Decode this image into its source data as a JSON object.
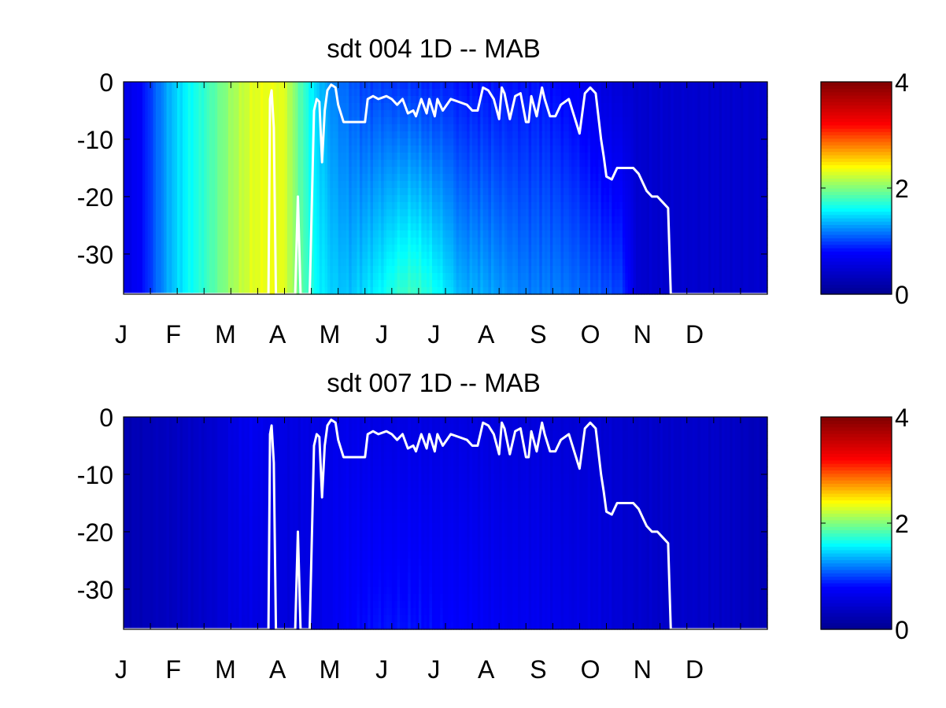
{
  "figure": {
    "colormap": "jet",
    "colormap_stops": [
      "#00008f",
      "#0000ff",
      "#00ffff",
      "#ffff00",
      "#ff0000",
      "#800000"
    ],
    "line_color": "#ffffff"
  },
  "chart_data": [
    {
      "type": "heatmap",
      "title": "sdt  004 1D   -- MAB",
      "xlabel": "",
      "ylabel": "",
      "x_tick_labels": [
        "J",
        "F",
        "M",
        "A",
        "M",
        "J",
        "J",
        "A",
        "S",
        "O",
        "N",
        "D"
      ],
      "x_range_months": [
        0,
        12
      ],
      "y_ticks": [
        0,
        -10,
        -20,
        -30
      ],
      "y_tick_labels": [
        "0",
        "-10",
        "-20",
        "-30"
      ],
      "ylim": [
        -37,
        0
      ],
      "colorbar": {
        "range": [
          0,
          4
        ],
        "tick_values": [
          0,
          2,
          4
        ],
        "tick_labels": [
          "0",
          "2",
          "4"
        ]
      },
      "field_model": {
        "month_grid": [
          0,
          0.3,
          0.6,
          0.9,
          1.2,
          1.5,
          1.8,
          2.1,
          2.4,
          2.7,
          3.0,
          3.3,
          3.6,
          3.9,
          4.2,
          4.5,
          4.8,
          5.1,
          5.4,
          5.7,
          6.0,
          6.3,
          6.6,
          6.9,
          7.2,
          7.5,
          7.8,
          8.1,
          8.4,
          8.7,
          9.0,
          9.3,
          9.6,
          9.9,
          10.2,
          10.5,
          10.8,
          11.1,
          11.4,
          11.7,
          12.0
        ],
        "surface_values": [
          0.6,
          0.75,
          1.1,
          1.4,
          1.6,
          1.75,
          1.95,
          2.15,
          2.3,
          2.35,
          2.3,
          1.85,
          1.45,
          1.2,
          1.1,
          1.0,
          1.0,
          0.95,
          0.95,
          0.9,
          0.9,
          0.85,
          0.85,
          0.85,
          0.85,
          0.85,
          0.85,
          0.8,
          0.75,
          0.65,
          0.55,
          0.5,
          0.45,
          0.45,
          0.45,
          0.45,
          0.45,
          0.45,
          0.45,
          0.45,
          0.45
        ],
        "bottom_values": [
          0.6,
          0.75,
          1.1,
          1.4,
          1.6,
          1.75,
          1.95,
          2.15,
          2.3,
          2.35,
          2.3,
          1.9,
          1.6,
          1.45,
          1.4,
          1.5,
          1.6,
          1.75,
          1.8,
          1.7,
          1.55,
          1.35,
          1.35,
          1.3,
          1.25,
          1.2,
          1.2,
          1.2,
          1.15,
          1.1,
          1.05,
          1.0,
          0.45,
          0.45,
          0.45,
          0.45,
          0.45,
          0.45,
          0.45,
          0.45,
          0.45
        ]
      },
      "series": [
        {
          "x": [
            0,
            2.7,
            2.73,
            2.76,
            2.8,
            2.84,
            2.9,
            3.0,
            3.1,
            3.2,
            3.25,
            3.3,
            3.37,
            3.4,
            3.47,
            3.55,
            3.6,
            3.65,
            3.7,
            3.75,
            3.8,
            3.87,
            3.95,
            4.0,
            4.1,
            4.5,
            4.55,
            4.65,
            4.75,
            4.9,
            5.0,
            5.1,
            5.2,
            5.3,
            5.4,
            5.45,
            5.55,
            5.65,
            5.7,
            5.8,
            5.85,
            5.95,
            6.1,
            6.25,
            6.4,
            6.5,
            6.6,
            6.7,
            6.8,
            6.9,
            7.0,
            7.05,
            7.1,
            7.2,
            7.3,
            7.4,
            7.5,
            7.55,
            7.6,
            7.7,
            7.8,
            7.85,
            7.95,
            8.05,
            8.1,
            8.15,
            8.3,
            8.4,
            8.5,
            8.6,
            8.7,
            8.8,
            8.9,
            8.95,
            9.0,
            9.1,
            9.2,
            9.3,
            9.5,
            9.6,
            9.7,
            9.75,
            9.85,
            9.95,
            10.05,
            10.15,
            10.2,
            10.25,
            10.3,
            12
          ],
          "y": [
            -37,
            -37,
            -3,
            -1.5,
            -8,
            -37,
            -37,
            -37,
            -37,
            -37,
            -20,
            -37,
            -37,
            -37,
            -37,
            -5,
            -3,
            -3.5,
            -14,
            -5,
            -1.5,
            -0.5,
            -1,
            -4,
            -7,
            -7,
            -3,
            -2.5,
            -3,
            -2.5,
            -3,
            -4,
            -3,
            -5.5,
            -5,
            -6,
            -3,
            -5.5,
            -3,
            -6,
            -3,
            -5,
            -3,
            -3.5,
            -4,
            -5,
            -5,
            -1,
            -1.5,
            -3,
            -6.5,
            -1,
            -2,
            -6.5,
            -2.5,
            -2,
            -7,
            -7,
            -2.5,
            -6,
            -1,
            -3,
            -6,
            -6,
            -5,
            -4,
            -3,
            -6,
            -9,
            -2,
            -1,
            -2,
            -10,
            -13,
            -16.5,
            -17,
            -15,
            -15,
            -15,
            -16,
            -18,
            -19,
            -20,
            -20,
            -21,
            -22,
            -37,
            -37,
            -37,
            -37
          ]
        }
      ]
    },
    {
      "type": "heatmap",
      "title": "sdt  007 1D   -- MAB",
      "xlabel": "",
      "ylabel": "",
      "x_tick_labels": [
        "J",
        "F",
        "M",
        "A",
        "M",
        "J",
        "J",
        "A",
        "S",
        "O",
        "N",
        "D"
      ],
      "x_range_months": [
        0,
        12
      ],
      "y_ticks": [
        0,
        -10,
        -20,
        -30
      ],
      "y_tick_labels": [
        "0",
        "-10",
        "-20",
        "-30"
      ],
      "ylim": [
        -37,
        0
      ],
      "colorbar": {
        "range": [
          0,
          4
        ],
        "tick_values": [
          0,
          2,
          4
        ],
        "tick_labels": [
          "0",
          "2",
          "4"
        ]
      },
      "field_model": {
        "month_grid": [
          0,
          0.3,
          0.6,
          0.9,
          1.2,
          1.5,
          1.8,
          2.1,
          2.4,
          2.7,
          3.0,
          3.3,
          3.6,
          3.9,
          4.2,
          4.5,
          4.8,
          5.1,
          5.4,
          5.7,
          6.0,
          6.3,
          6.6,
          6.9,
          7.2,
          7.5,
          7.8,
          8.1,
          8.4,
          8.7,
          9.0,
          9.3,
          9.6,
          9.9,
          10.2,
          10.5,
          10.8,
          11.1,
          11.4,
          11.7,
          12.0
        ],
        "surface_values": [
          0.25,
          0.28,
          0.32,
          0.35,
          0.38,
          0.42,
          0.5,
          0.62,
          0.7,
          0.65,
          0.6,
          0.6,
          0.62,
          0.65,
          0.65,
          0.62,
          0.6,
          0.6,
          0.6,
          0.58,
          0.58,
          0.58,
          0.58,
          0.56,
          0.55,
          0.55,
          0.55,
          0.52,
          0.5,
          0.5,
          0.48,
          0.45,
          0.42,
          0.42,
          0.42,
          0.42,
          0.42,
          0.4,
          0.38,
          0.32,
          0.3
        ],
        "bottom_values": [
          0.25,
          0.28,
          0.32,
          0.35,
          0.38,
          0.42,
          0.5,
          0.58,
          0.6,
          0.58,
          0.55,
          0.55,
          0.62,
          0.7,
          0.78,
          0.82,
          0.85,
          0.85,
          0.85,
          0.82,
          0.8,
          0.78,
          0.75,
          0.72,
          0.7,
          0.7,
          0.68,
          0.65,
          0.62,
          0.6,
          0.55,
          0.5,
          0.45,
          0.42,
          0.42,
          0.42,
          0.42,
          0.4,
          0.38,
          0.32,
          0.3
        ]
      },
      "series": [
        {
          "x": [
            0,
            2.7,
            2.73,
            2.76,
            2.8,
            2.84,
            2.9,
            3.0,
            3.1,
            3.2,
            3.25,
            3.3,
            3.37,
            3.4,
            3.47,
            3.55,
            3.6,
            3.65,
            3.7,
            3.75,
            3.8,
            3.87,
            3.95,
            4.0,
            4.1,
            4.5,
            4.55,
            4.65,
            4.75,
            4.9,
            5.0,
            5.1,
            5.2,
            5.3,
            5.4,
            5.45,
            5.55,
            5.65,
            5.7,
            5.8,
            5.85,
            5.95,
            6.1,
            6.25,
            6.4,
            6.5,
            6.6,
            6.7,
            6.8,
            6.9,
            7.0,
            7.05,
            7.1,
            7.2,
            7.3,
            7.4,
            7.5,
            7.55,
            7.6,
            7.7,
            7.8,
            7.85,
            7.95,
            8.05,
            8.1,
            8.15,
            8.3,
            8.4,
            8.5,
            8.6,
            8.7,
            8.8,
            8.9,
            8.95,
            9.0,
            9.1,
            9.2,
            9.3,
            9.5,
            9.6,
            9.7,
            9.75,
            9.85,
            9.95,
            10.05,
            10.15,
            10.2,
            10.25,
            10.3,
            12
          ],
          "y": [
            -37,
            -37,
            -3,
            -1.5,
            -8,
            -37,
            -37,
            -37,
            -37,
            -37,
            -20,
            -37,
            -37,
            -37,
            -37,
            -5,
            -3,
            -3.5,
            -14,
            -5,
            -1.5,
            -0.5,
            -1,
            -4,
            -7,
            -7,
            -3,
            -2.5,
            -3,
            -2.5,
            -3,
            -4,
            -3,
            -5.5,
            -5,
            -6,
            -3,
            -5.5,
            -3,
            -6,
            -3,
            -5,
            -3,
            -3.5,
            -4,
            -5,
            -5,
            -1,
            -1.5,
            -3,
            -6.5,
            -1,
            -2,
            -6.5,
            -2.5,
            -2,
            -7,
            -7,
            -2.5,
            -6,
            -1,
            -3,
            -6,
            -6,
            -5,
            -4,
            -3,
            -6,
            -9,
            -2,
            -1,
            -2,
            -10,
            -13,
            -16.5,
            -17,
            -15,
            -15,
            -15,
            -16,
            -18,
            -19,
            -20,
            -20,
            -21,
            -22,
            -37,
            -37,
            -37,
            -37
          ]
        }
      ]
    }
  ]
}
